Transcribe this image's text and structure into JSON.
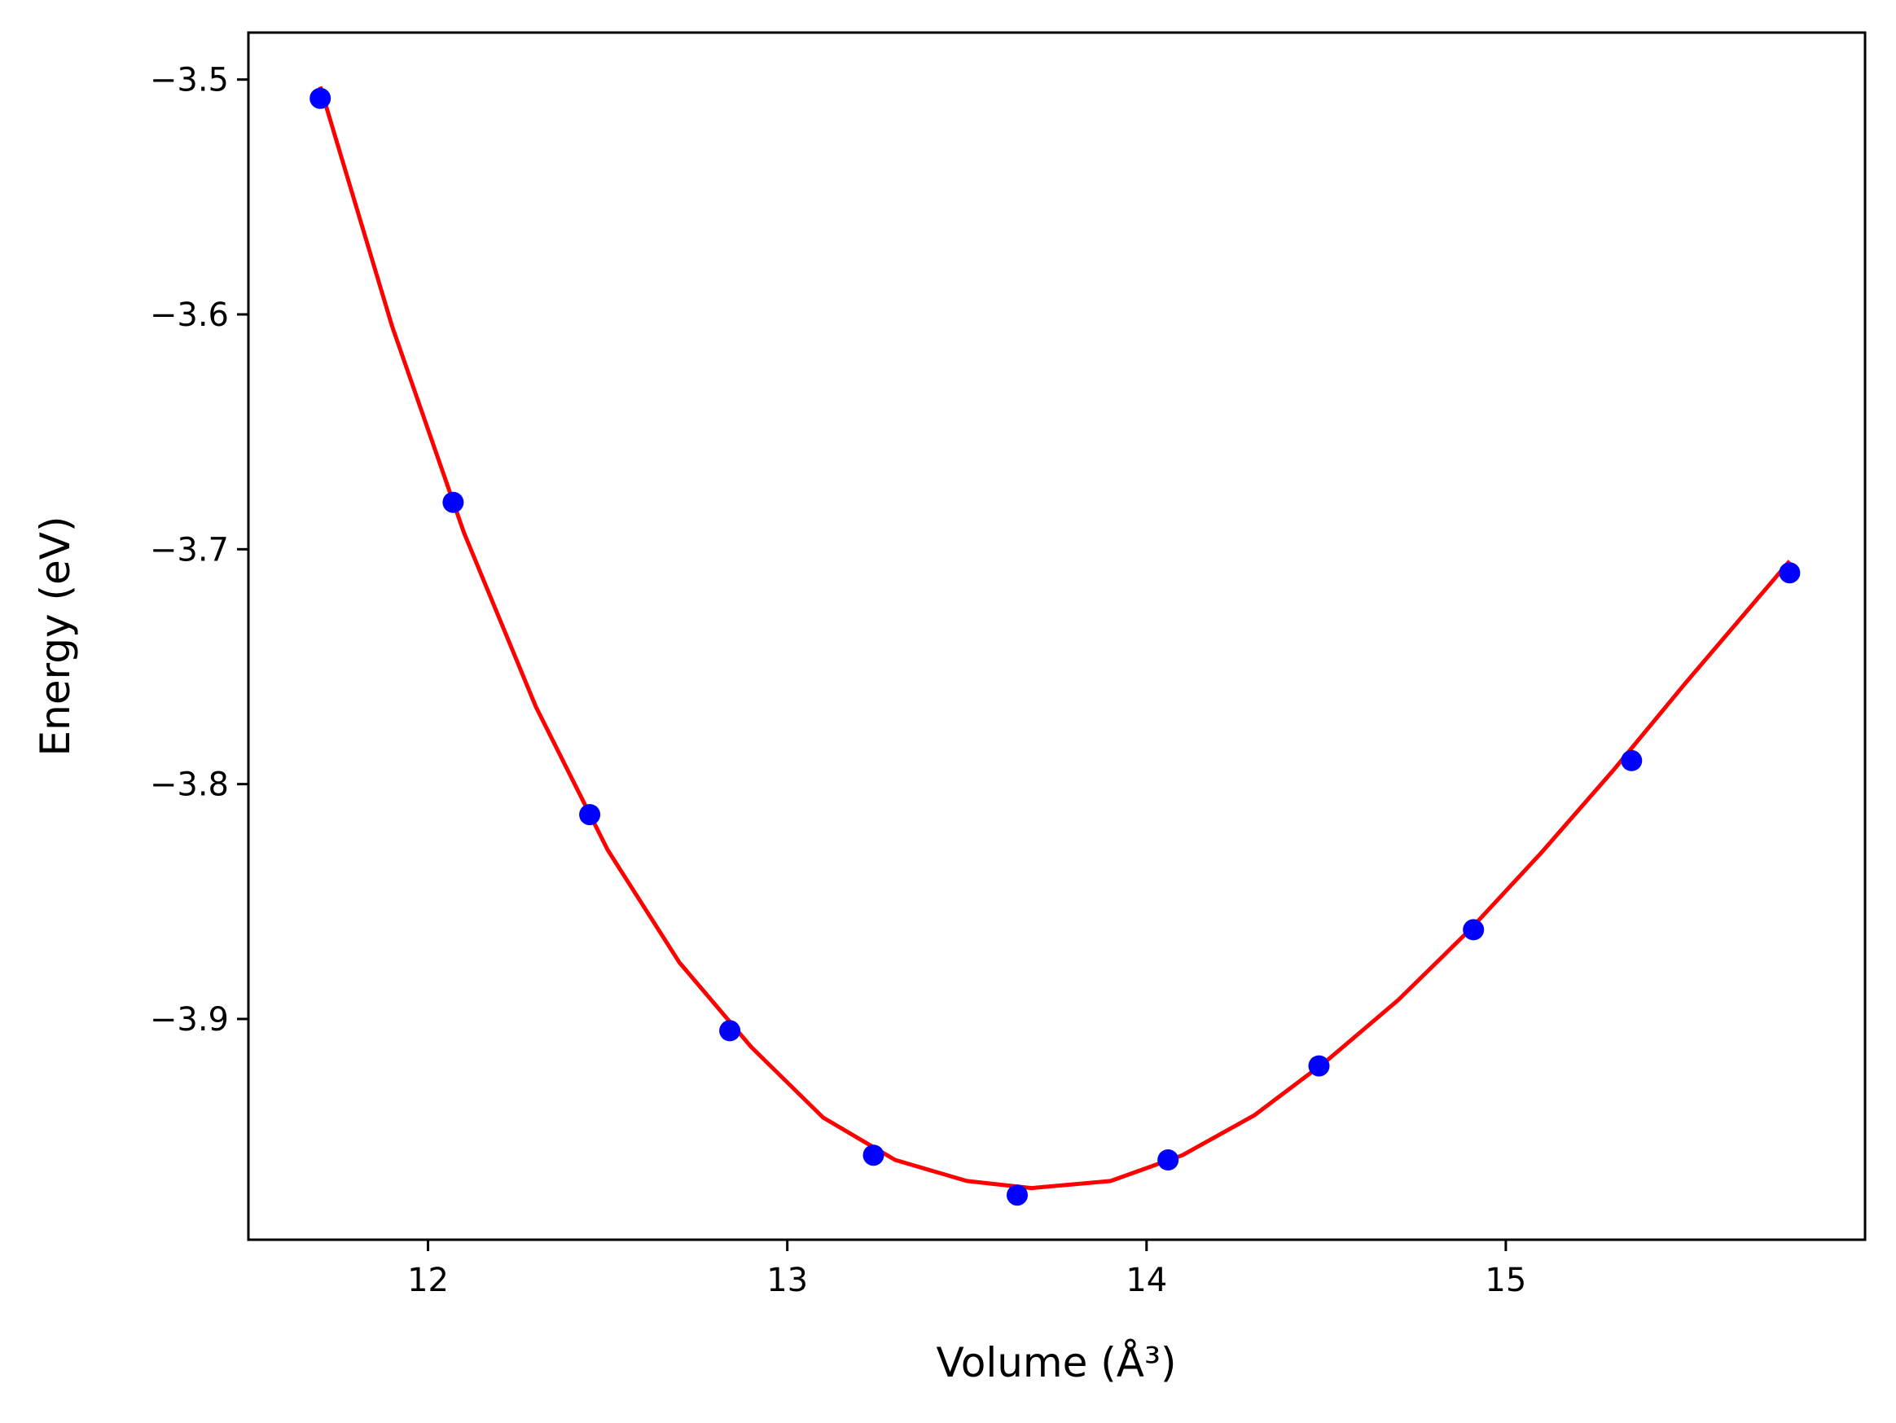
{
  "chart_data": {
    "type": "line",
    "title": "",
    "xlabel": "Volume (Å³)",
    "ylabel": "Energy (eV)",
    "xlim": [
      11.5,
      16.0
    ],
    "ylim": [
      -3.994,
      -3.48
    ],
    "xticks": [
      12,
      13,
      14,
      15
    ],
    "xtick_labels": [
      "12",
      "13",
      "14",
      "15"
    ],
    "yticks": [
      -3.5,
      -3.6,
      -3.7,
      -3.8,
      -3.9
    ],
    "ytick_labels": [
      "−3.5",
      "−3.6",
      "−3.7",
      "−3.8",
      "−3.9"
    ],
    "grid": false,
    "series": [
      {
        "kind": "scatter",
        "color": "#0000ff",
        "x": [
          11.7,
          12.07,
          12.45,
          12.84,
          13.24,
          13.64,
          14.06,
          14.48,
          14.91,
          15.35,
          15.79
        ],
        "y": [
          -3.508,
          -3.68,
          -3.813,
          -3.905,
          -3.958,
          -3.975,
          -3.96,
          -3.92,
          -3.862,
          -3.79,
          -3.71
        ]
      },
      {
        "kind": "line",
        "color": "#ff0000",
        "x": [
          11.7,
          11.9,
          12.1,
          12.3,
          12.5,
          12.7,
          12.9,
          13.1,
          13.3,
          13.5,
          13.68,
          13.9,
          14.1,
          14.3,
          14.5,
          14.7,
          14.9,
          15.1,
          15.3,
          15.5,
          15.79
        ],
        "y": [
          -3.503,
          -3.605,
          -3.693,
          -3.767,
          -3.828,
          -3.876,
          -3.912,
          -3.942,
          -3.96,
          -3.969,
          -3.972,
          -3.969,
          -3.958,
          -3.941,
          -3.918,
          -3.892,
          -3.862,
          -3.829,
          -3.794,
          -3.757,
          -3.705
        ]
      }
    ]
  }
}
